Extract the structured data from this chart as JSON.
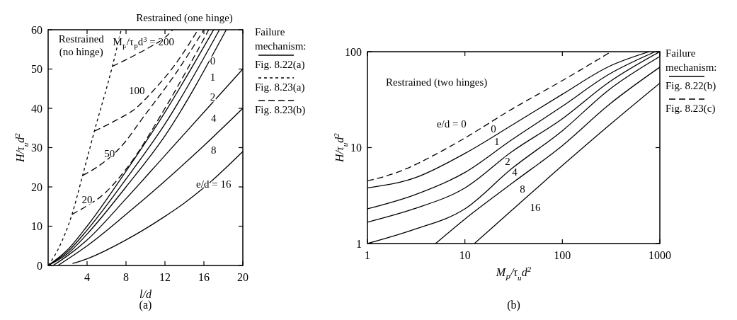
{
  "chart_data": [
    {
      "type": "line",
      "title": "Restrained (one hinge)",
      "xlabel": "l/d",
      "ylabel": "H/τ$_{u}$d$^{2}$",
      "legend_title": "Failure mechanism:",
      "legend": "right",
      "grid": false,
      "xlim": [
        0,
        20
      ],
      "xticks": [
        4,
        8,
        12,
        16,
        20
      ],
      "ylim": [
        0,
        60
      ],
      "yticks": [
        0,
        10,
        20,
        30,
        40,
        50,
        60
      ],
      "series": [
        {
          "name": "Fig. 8.22(a)",
          "color": "#000000",
          "line_style": "solid",
          "x": [
            0,
            2,
            4,
            8,
            12,
            17
          ],
          "values": [
            0,
            4,
            10,
            24,
            39,
            60
          ]
        },
        {
          "color": "#000000",
          "line_style": "solid",
          "x": [
            0,
            2,
            4,
            8,
            12,
            17.6
          ],
          "values": [
            0,
            3.5,
            9,
            22,
            36,
            60
          ]
        },
        {
          "color": "#000000",
          "line_style": "solid",
          "x": [
            0,
            2,
            4,
            8,
            12,
            18.3
          ],
          "values": [
            0,
            3,
            8,
            20,
            33,
            60
          ]
        },
        {
          "color": "#000000",
          "line_style": "solid",
          "x": [
            0.5,
            2,
            4,
            8,
            12,
            16,
            20
          ],
          "values": [
            0,
            2.5,
            6.5,
            17,
            28,
            39,
            50
          ]
        },
        {
          "color": "#000000",
          "line_style": "solid",
          "x": [
            1,
            4,
            8,
            12,
            16,
            20
          ],
          "values": [
            0,
            5,
            13,
            21.5,
            30.5,
            40
          ]
        },
        {
          "color": "#000000",
          "line_style": "solid",
          "x": [
            2.5,
            4,
            8,
            12,
            14,
            16,
            20
          ],
          "values": [
            0.5,
            1.7,
            6.5,
            12.5,
            15.9,
            19.8,
            29
          ]
        },
        {
          "name": "Fig. 8.23(a)",
          "color": "#000000",
          "line_style": "dotted",
          "x": [
            0,
            1,
            2.45,
            3.54,
            4.75,
            6.6,
            7.5
          ],
          "values": [
            0,
            4,
            13,
            22.9,
            34.2,
            50.7,
            60
          ]
        },
        {
          "name": "Fig. 8.23(b)",
          "color": "#000000",
          "line_style": "dashed",
          "x": [
            6.6,
            8.5,
            10.6,
            12,
            12.8
          ],
          "values": [
            50.7,
            53,
            55.8,
            58,
            60
          ]
        },
        {
          "color": "#000000",
          "line_style": "dashed",
          "x": [
            4.75,
            7,
            9,
            10.8,
            13,
            15.4
          ],
          "values": [
            34.2,
            37,
            40,
            44.5,
            51,
            60
          ]
        },
        {
          "color": "#000000",
          "line_style": "dashed",
          "x": [
            3.54,
            5,
            7.4,
            10,
            13,
            16
          ],
          "values": [
            22.9,
            25,
            30,
            38.5,
            48.5,
            60
          ]
        },
        {
          "color": "#000000",
          "line_style": "dashed",
          "x": [
            2.45,
            4,
            5.4,
            8,
            12,
            16.5
          ],
          "values": [
            13,
            15.2,
            17.5,
            24.5,
            40,
            60
          ]
        }
      ],
      "annotations": [
        "Restrained (no hinge)",
        "M$_{P}$/τ$_{P}$d$^{3}$ = 200",
        "100",
        "50",
        "20",
        "0",
        "1",
        "2",
        "4",
        "8",
        "e/d = 16",
        "(a)"
      ]
    },
    {
      "type": "line",
      "title": "Restrained (two hinges)",
      "xlabel": "M$_{P}$/τ$_{u}$d$^{2}$",
      "ylabel": "H/τ$_{u}$d$^{2}$",
      "legend_title": "Failure mechanism:",
      "legend": "right",
      "grid": false,
      "log": "xy",
      "xlim": [
        1,
        1000
      ],
      "xticks": [
        1,
        10,
        100,
        1000
      ],
      "ylim": [
        1,
        100
      ],
      "yticks": [
        1,
        10,
        100
      ],
      "series": [
        {
          "name": "Fig. 8.22(b)",
          "color": "#000000",
          "line_style": "solid",
          "x": [
            1,
            3,
            10,
            30,
            100,
            300,
            780
          ],
          "values": [
            3.8,
            4.8,
            8.7,
            17,
            36,
            70,
            100
          ]
        },
        {
          "color": "#000000",
          "line_style": "solid",
          "x": [
            1,
            3,
            10,
            30,
            100,
            300,
            900
          ],
          "values": [
            2.3,
            3.2,
            5.5,
            12,
            27,
            58,
            100
          ]
        },
        {
          "color": "#000000",
          "line_style": "solid",
          "x": [
            1,
            3,
            10,
            30,
            100,
            300,
            1000
          ],
          "values": [
            1.67,
            2.3,
            3.8,
            9,
            20,
            48,
            100
          ]
        },
        {
          "color": "#000000",
          "line_style": "solid",
          "x": [
            1,
            3,
            10,
            30,
            100,
            300,
            1000
          ],
          "values": [
            1,
            1.4,
            2.3,
            6,
            15,
            40,
            89
          ]
        },
        {
          "color": "#000000",
          "line_style": "solid",
          "x": [
            5,
            10,
            30,
            100,
            300,
            1000
          ],
          "values": [
            1,
            1.8,
            4.2,
            10.5,
            28,
            69
          ]
        },
        {
          "color": "#000000",
          "line_style": "solid",
          "x": [
            12.5,
            30,
            100,
            300,
            1000
          ],
          "values": [
            1,
            2.2,
            6.5,
            17,
            47
          ]
        },
        {
          "name": "Fig. 8.23(c)",
          "color": "#000000",
          "line_style": "dashed",
          "x": [
            1,
            2,
            5,
            10,
            30,
            100,
            316
          ],
          "values": [
            4.5,
            5.5,
            8.5,
            12.6,
            25,
            50,
            100
          ]
        }
      ],
      "annotations": [
        "e/d = 0",
        "0",
        "1",
        "2",
        "4",
        "8",
        "16",
        "(b)"
      ]
    }
  ]
}
